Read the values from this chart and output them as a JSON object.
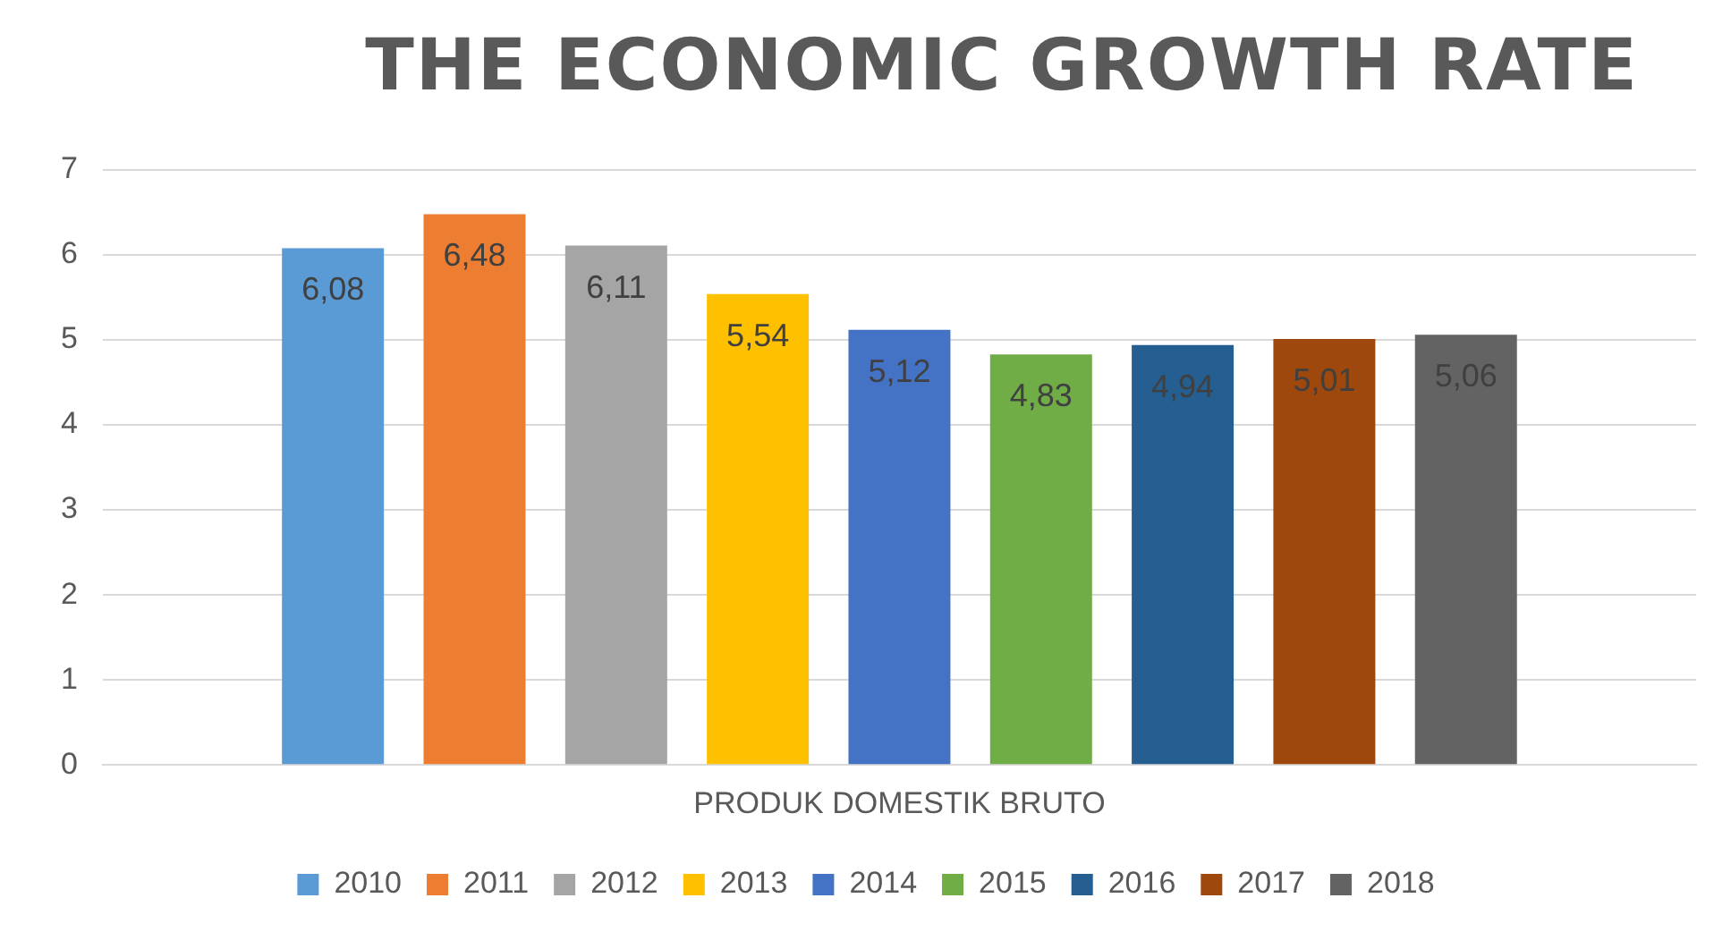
{
  "chart_data": {
    "type": "bar",
    "title": "THE ECONOMIC GROWTH RATE",
    "categories": [
      "PRODUK DOMESTIK BRUTO"
    ],
    "ylim": [
      0,
      7
    ],
    "yticks": [
      0,
      1,
      2,
      3,
      4,
      5,
      6,
      7
    ],
    "grid": "y",
    "legend": "bottom",
    "series": [
      {
        "name": "2010",
        "color": "#5b9bd5",
        "values": [
          6.08
        ],
        "value_labels": [
          "6,08"
        ]
      },
      {
        "name": "2011",
        "color": "#ed7d31",
        "values": [
          6.48
        ],
        "value_labels": [
          "6,48"
        ]
      },
      {
        "name": "2012",
        "color": "#a5a5a5",
        "values": [
          6.11
        ],
        "value_labels": [
          "6,11"
        ]
      },
      {
        "name": "2013",
        "color": "#ffc000",
        "values": [
          5.54
        ],
        "value_labels": [
          "5,54"
        ]
      },
      {
        "name": "2014",
        "color": "#4472c4",
        "values": [
          5.12
        ],
        "value_labels": [
          "5,12"
        ]
      },
      {
        "name": "2015",
        "color": "#70ad47",
        "values": [
          4.83
        ],
        "value_labels": [
          "4,83"
        ]
      },
      {
        "name": "2016",
        "color": "#255e91",
        "values": [
          4.94
        ],
        "value_labels": [
          "4,94"
        ]
      },
      {
        "name": "2017",
        "color": "#9e480e",
        "values": [
          5.01
        ],
        "value_labels": [
          "5,01"
        ]
      },
      {
        "name": "2018",
        "color": "#636363",
        "values": [
          5.06
        ],
        "value_labels": [
          "5,06"
        ]
      }
    ]
  }
}
